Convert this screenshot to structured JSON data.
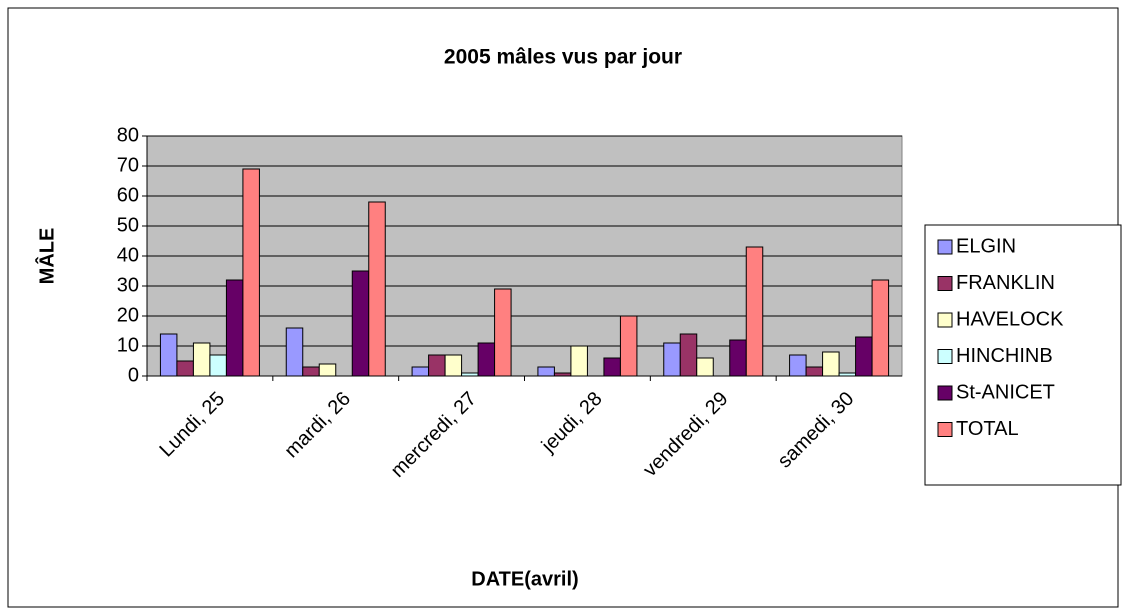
{
  "chart_data": {
    "type": "bar",
    "title": "2005 mâles vus par jour",
    "x_label": "DATE(avril)",
    "y_label": "MÂLE",
    "categories": [
      "Lundi, 25",
      "mardi, 26",
      "mercredi, 27",
      "jeudi, 28",
      "vendredi, 29",
      "samedi, 30"
    ],
    "series": [
      {
        "name": "ELGIN",
        "color": "#9999ff",
        "values": [
          14,
          16,
          3,
          3,
          11,
          7
        ]
      },
      {
        "name": "FRANKLIN",
        "color": "#993366",
        "values": [
          5,
          3,
          7,
          1,
          14,
          3
        ]
      },
      {
        "name": "HAVELOCK",
        "color": "#ffffcc",
        "values": [
          11,
          4,
          7,
          10,
          6,
          8
        ]
      },
      {
        "name": "HINCHINB",
        "color": "#ccffff",
        "values": [
          7,
          0,
          1,
          0,
          0,
          1
        ]
      },
      {
        "name": "St-ANICET",
        "color": "#660066",
        "values": [
          32,
          35,
          11,
          6,
          12,
          13
        ]
      },
      {
        "name": "TOTAL",
        "color": "#ff8080",
        "values": [
          69,
          58,
          29,
          20,
          43,
          32
        ]
      }
    ],
    "ylim": [
      0,
      80
    ],
    "yticks": [
      0,
      10,
      20,
      30,
      40,
      50,
      60,
      70,
      80
    ],
    "grid": true,
    "legend": "right"
  }
}
